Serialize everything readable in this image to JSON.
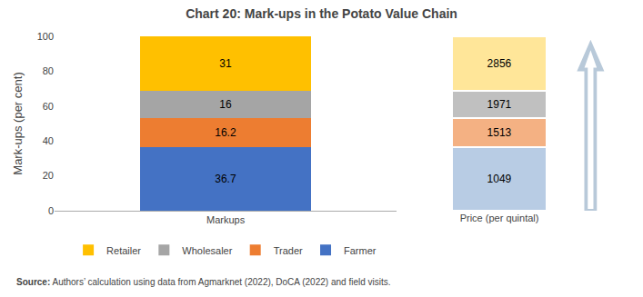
{
  "chart_data": {
    "type": "bar",
    "stacked": true,
    "title": "Chart 20: Mark-ups in the Potato Value Chain",
    "categories": [
      "Markups"
    ],
    "series": [
      {
        "name": "Farmer",
        "color": "#4472C4",
        "values": [
          36.7
        ]
      },
      {
        "name": "Trader",
        "color": "#ED7D31",
        "values": [
          16.2
        ]
      },
      {
        "name": "Wholesaler",
        "color": "#A5A5A5",
        "values": [
          16.0
        ]
      },
      {
        "name": "Retailer",
        "color": "#FFC000",
        "values": [
          31.0
        ]
      }
    ],
    "data_labels": true,
    "ylabel": "Mark-ups (per cent)",
    "ylim": [
      0,
      100
    ],
    "yticks": [
      0,
      20,
      40,
      60,
      80,
      100
    ],
    "grid": false,
    "legend": "bottom",
    "price_boxes": {
      "label": "Price (per quintal)",
      "values": [
        1049,
        1513,
        1971,
        2856
      ],
      "colors": [
        "#B8CCE4",
        "#F4B183",
        "#C0C0C0",
        "#FFE699"
      ],
      "arrow_color": "#B8C9D9"
    },
    "source_label": "Source:",
    "source": " Authors’ calculation using data from Agmarknet (2022), DoCA (2022) and field visits."
  }
}
